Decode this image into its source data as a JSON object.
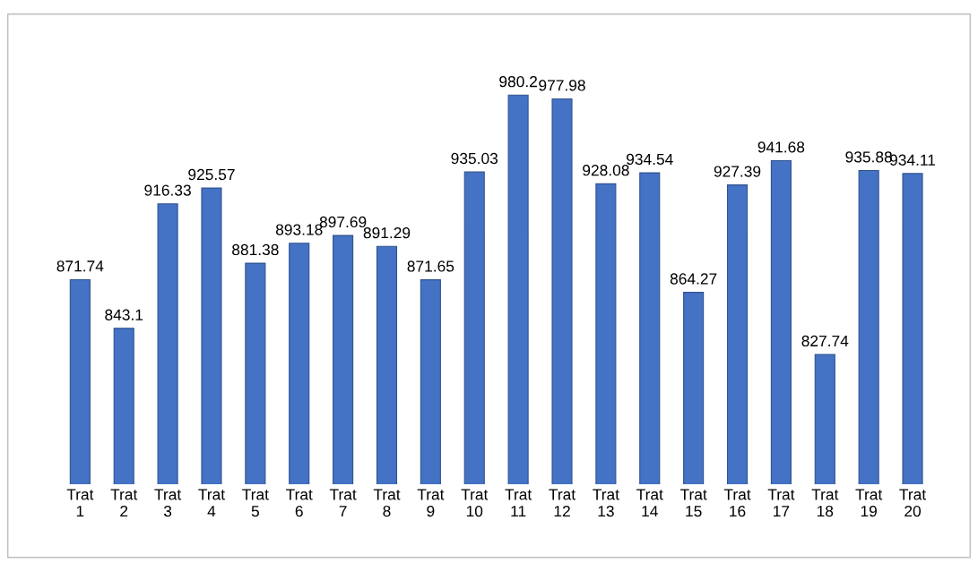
{
  "chart_data": {
    "type": "bar",
    "categories": [
      "Trat\n1",
      "Trat\n2",
      "Trat\n3",
      "Trat\n4",
      "Trat\n5",
      "Trat\n6",
      "Trat\n7",
      "Trat\n8",
      "Trat\n9",
      "Trat\n10",
      "Trat\n11",
      "Trat\n12",
      "Trat\n13",
      "Trat\n14",
      "Trat\n15",
      "Trat\n16",
      "Trat\n17",
      "Trat\n18",
      "Trat\n19",
      "Trat\n20"
    ],
    "values": [
      871.74,
      843.1,
      916.33,
      925.57,
      881.38,
      893.18,
      897.69,
      891.29,
      871.65,
      935.03,
      980.2,
      977.98,
      928.08,
      934.54,
      864.27,
      927.39,
      941.68,
      827.74,
      935.88,
      934.11
    ],
    "color": "#4472c4",
    "tick_labels": "x",
    "data_labels": true,
    "grid": false,
    "legend": false
  }
}
